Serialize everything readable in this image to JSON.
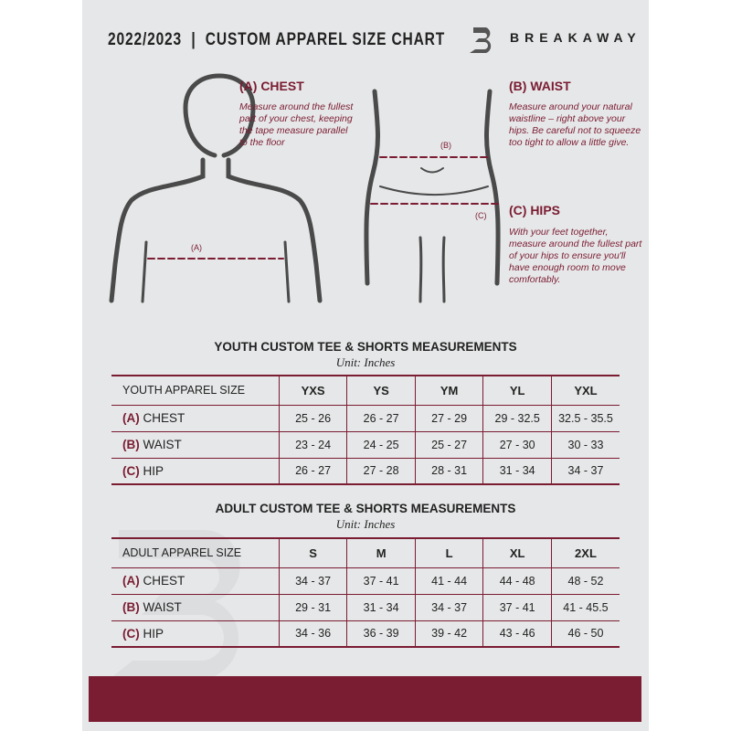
{
  "header": {
    "title": "2022/2023  |  CUSTOM APPAREL SIZE CHART",
    "brand": "BREAKAWAY"
  },
  "measure": {
    "chest": {
      "heading": "(A) CHEST",
      "text": "Measure around the fullest part of your chest, keeping the tape measure parallel to the floor",
      "marker": "(A)"
    },
    "waist": {
      "heading": "(B) WAIST",
      "text": "Measure around your natural waistline – right above your hips. Be careful not to squeeze too tight to allow a little give.",
      "marker": "(B)"
    },
    "hips": {
      "heading": "(C) HIPS",
      "text": "With your feet together, measure around the fullest part of your hips to ensure you'll have enough room to move comfortably.",
      "marker": "(C)"
    }
  },
  "youth": {
    "title": "YOUTH CUSTOM TEE & SHORTS MEASUREMENTS",
    "unit": "Unit: Inches",
    "header": [
      "YOUTH APPAREL SIZE",
      "YXS",
      "YS",
      "YM",
      "YL",
      "YXL"
    ],
    "rows": [
      {
        "letter": "(A)",
        "label": "CHEST",
        "values": [
          "25 - 26",
          "26 - 27",
          "27 - 29",
          "29 - 32.5",
          "32.5 - 35.5"
        ]
      },
      {
        "letter": "(B)",
        "label": "WAIST",
        "values": [
          "23 - 24",
          "24 - 25",
          "25 - 27",
          "27 - 30",
          "30 - 33"
        ]
      },
      {
        "letter": "(C)",
        "label": "HIP",
        "values": [
          "26 - 27",
          "27 - 28",
          "28 - 31",
          "31 - 34",
          "34 - 37"
        ]
      }
    ]
  },
  "adult": {
    "title": "ADULT CUSTOM TEE & SHORTS MEASUREMENTS",
    "unit": "Unit: Inches",
    "header": [
      "ADULT APPAREL SIZE",
      "S",
      "M",
      "L",
      "XL",
      "2XL"
    ],
    "rows": [
      {
        "letter": "(A)",
        "label": "CHEST",
        "values": [
          "34 - 37",
          "37 - 41",
          "41 - 44",
          "44 - 48",
          "48 - 52"
        ]
      },
      {
        "letter": "(B)",
        "label": "WAIST",
        "values": [
          "29 - 31",
          "31 - 34",
          "34 - 37",
          "37 - 41",
          "41 - 45.5"
        ]
      },
      {
        "letter": "(C)",
        "label": "HIP",
        "values": [
          "34 - 36",
          "36 - 39",
          "39 - 42",
          "43 - 46",
          "46 - 50"
        ]
      }
    ]
  },
  "colors": {
    "accent": "#7a1c32",
    "background": "#e6e7e8"
  }
}
